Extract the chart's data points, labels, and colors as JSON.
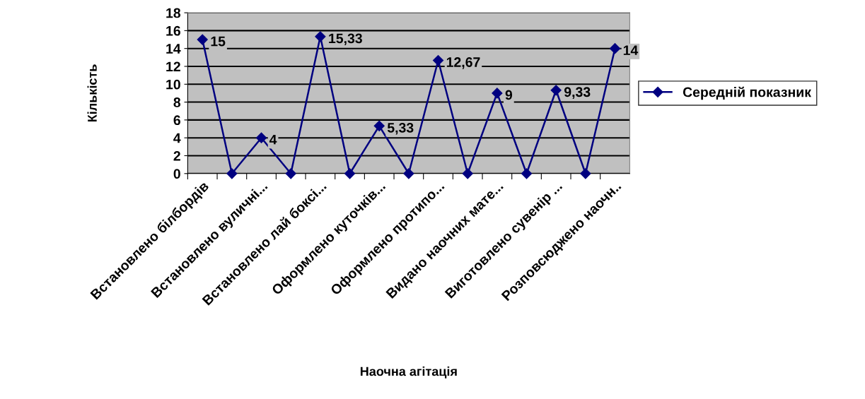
{
  "chart_data": {
    "type": "line",
    "xlabel": "Наочна агітація",
    "ylabel": "Кількість",
    "categories": [
      "Встановлено білбордів",
      null,
      "Встановлено вуличні...",
      null,
      "Встановлено лай боксі...",
      null,
      "Оформлено куточків...",
      null,
      "Оформлено протипо...",
      null,
      "Видано наочних мате...",
      null,
      "Виготовлено сувенір ...",
      null,
      "Розповсюджено наочн.."
    ],
    "series": [
      {
        "name": "Середній показник",
        "color": "#000080",
        "values": [
          15,
          0,
          4,
          0,
          15.33,
          0,
          5.33,
          0,
          12.67,
          0,
          9,
          0,
          9.33,
          0,
          14
        ],
        "value_labels": [
          "15",
          null,
          "4",
          null,
          "15,33",
          null,
          "5,33",
          null,
          "12,67",
          null,
          "9",
          null,
          "9,33",
          null,
          "14"
        ]
      }
    ],
    "ylim": [
      0,
      18
    ],
    "yticks": [
      0,
      2,
      4,
      6,
      8,
      10,
      12,
      14,
      16,
      18
    ],
    "grid": "y",
    "legend": "right",
    "marker": "diamond",
    "line_style": "solid"
  }
}
